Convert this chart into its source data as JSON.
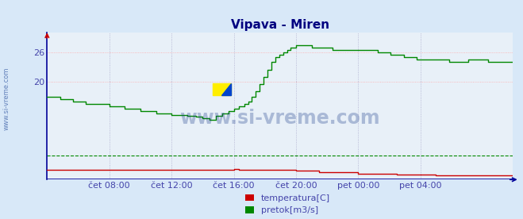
{
  "title": "Vipava - Miren",
  "title_color": "#000080",
  "background_color": "#d8e8f8",
  "plot_background": "#e8f0f8",
  "grid_color_h": "#ffaaaa",
  "grid_color_v": "#aaaacc",
  "tick_label_color": "#4444aa",
  "watermark": "www.si-vreme.com",
  "watermark_color": "#1a3a8a",
  "x_tick_labels": [
    "čet 08:00",
    "čet 12:00",
    "čet 16:00",
    "čet 20:00",
    "pet 00:00",
    "pet 04:00"
  ],
  "x_tick_positions": [
    48,
    96,
    144,
    192,
    240,
    288
  ],
  "ylim": [
    0,
    30
  ],
  "yticks": [
    20,
    26
  ],
  "total_points": 360,
  "temp_color": "#cc0000",
  "flow_color": "#008800",
  "axis_color": "#000099",
  "legend_labels": [
    "temperatura[C]",
    "pretok[m3/s]"
  ],
  "legend_colors": [
    "#cc0000",
    "#008800"
  ],
  "flow_dashed_level": 5.0,
  "side_label": "www.si-vreme.com",
  "side_label_color": "#4466aa"
}
